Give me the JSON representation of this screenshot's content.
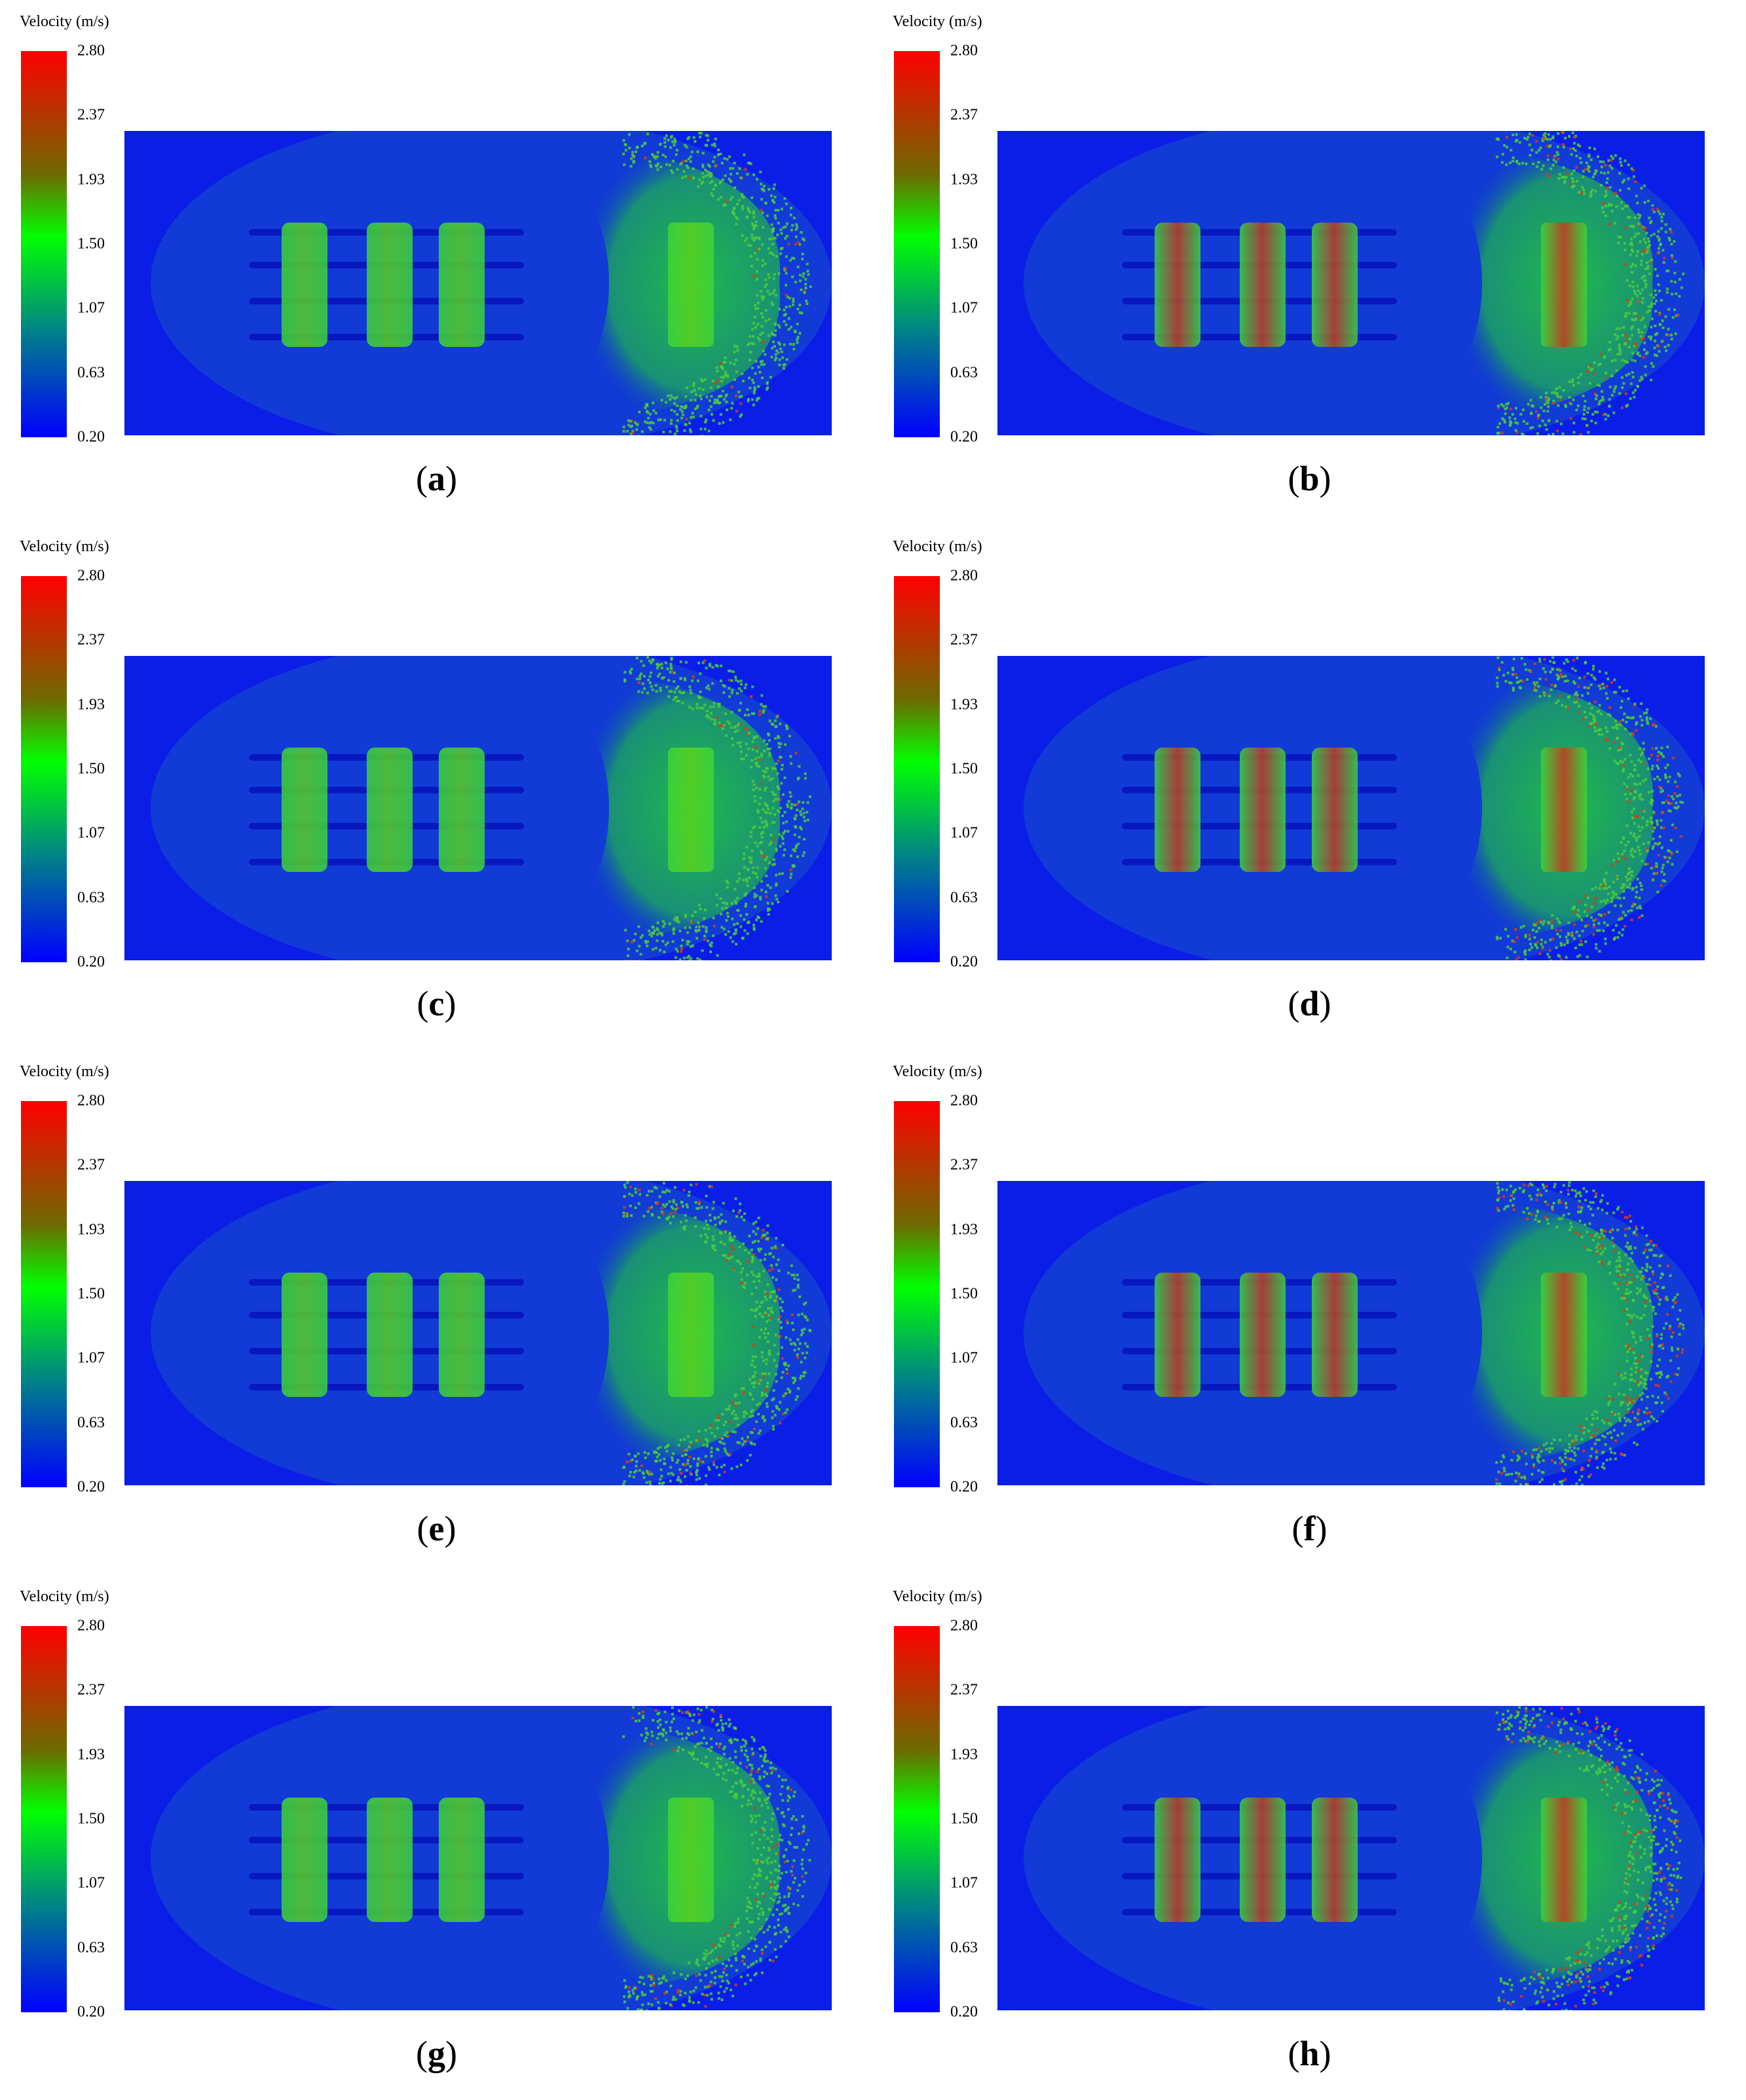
{
  "legend": {
    "title": "Velocity (m/s)",
    "ticks": [
      "2.80",
      "2.37",
      "1.93",
      "1.50",
      "1.07",
      "0.63",
      "0.20"
    ],
    "min": 0.2,
    "max": 2.8,
    "colors": {
      "low": "#0000ff",
      "mid": "#00ff00",
      "high": "#ff0000"
    }
  },
  "panels": [
    {
      "label": "a",
      "open": "(",
      "close": ")",
      "intensity": 0.15
    },
    {
      "label": "b",
      "open": "(",
      "close": ")",
      "intensity": 0.55
    },
    {
      "label": "c",
      "open": "(",
      "close": ")",
      "intensity": 0.2
    },
    {
      "label": "d",
      "open": "(",
      "close": ")",
      "intensity": 0.75
    },
    {
      "label": "e",
      "open": "(",
      "close": ")",
      "intensity": 0.45
    },
    {
      "label": "f",
      "open": "(",
      "close": ")",
      "intensity": 0.9
    },
    {
      "label": "g",
      "open": "(",
      "close": ")",
      "intensity": 0.4
    },
    {
      "label": "h",
      "open": "(",
      "close": ")",
      "intensity": 0.8
    }
  ]
}
